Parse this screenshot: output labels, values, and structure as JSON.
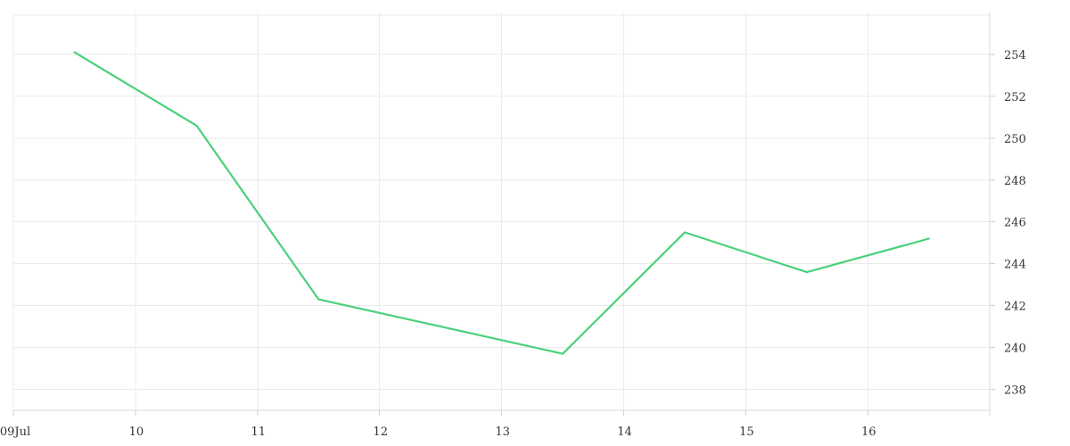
{
  "chart_data": {
    "type": "line",
    "x_tick_labels": [
      "09Jul",
      "10",
      "11",
      "12",
      "13",
      "14",
      "15",
      "16"
    ],
    "y_tick_labels": [
      "238",
      "240",
      "242",
      "244",
      "246",
      "248",
      "250",
      "252",
      "254"
    ],
    "y_ticks": [
      238,
      240,
      242,
      244,
      246,
      248,
      250,
      252,
      254
    ],
    "x_range": [
      "2024-07-09T00:00",
      "2024-07-17T00:00"
    ],
    "ylim": [
      237,
      256
    ],
    "grid": true,
    "y_axis_position": "right",
    "series": [
      {
        "color": "#4ad17a",
        "x": [
          "2024-07-09T12:00",
          "2024-07-10T12:00",
          "2024-07-11T12:00",
          "2024-07-13T12:00",
          "2024-07-14T12:00",
          "2024-07-15T12:00",
          "2024-07-16T12:00"
        ],
        "values": [
          254.1,
          250.6,
          242.3,
          239.7,
          245.5,
          243.6,
          245.2
        ]
      }
    ]
  }
}
